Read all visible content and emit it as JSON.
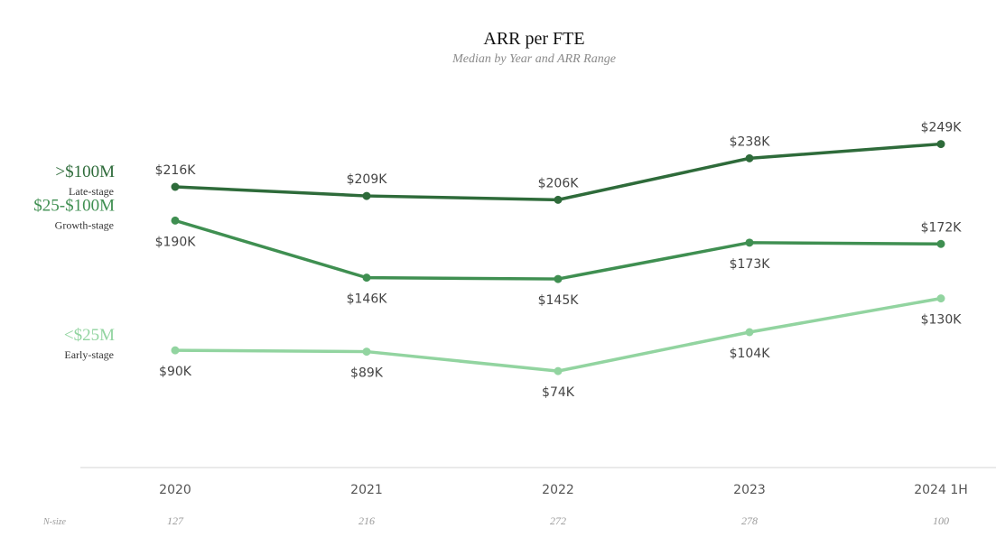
{
  "chart_data": {
    "type": "line",
    "title": "ARR per FTE",
    "subtitle": "Median by Year and ARR Range",
    "categories": [
      "2020",
      "2021",
      "2022",
      "2023",
      "2024 1H"
    ],
    "series": [
      {
        "name": ">$100M",
        "stage": "Late-stage",
        "color": "#2e6b3a",
        "values": [
          216,
          209,
          206,
          238,
          249
        ],
        "labels": [
          "$216K",
          "$209K",
          "$206K",
          "$238K",
          "$249K"
        ],
        "label_position": [
          "above",
          "above",
          "above",
          "above",
          "above"
        ]
      },
      {
        "name": "$25-$100M",
        "stage": "Growth-stage",
        "color": "#3f8f51",
        "values": [
          190,
          146,
          145,
          173,
          172
        ],
        "labels": [
          "$190K",
          "$146K",
          "$145K",
          "$173K",
          "$172K"
        ],
        "label_position": [
          "below",
          "below",
          "below",
          "below",
          "above"
        ]
      },
      {
        "name": "<$25M",
        "stage": "Early-stage",
        "color": "#92d4a0",
        "values": [
          90,
          89,
          74,
          104,
          130
        ],
        "labels": [
          "$90K",
          "$89K",
          "$74K",
          "$104K",
          "$130K"
        ],
        "label_position": [
          "below",
          "below",
          "below",
          "below",
          "below"
        ]
      }
    ],
    "unit": "$K",
    "n_size_label": "N-size",
    "n_size": [
      "127",
      "216",
      "272",
      "278",
      "100"
    ],
    "grid": false,
    "legend": "left, inline labels"
  }
}
